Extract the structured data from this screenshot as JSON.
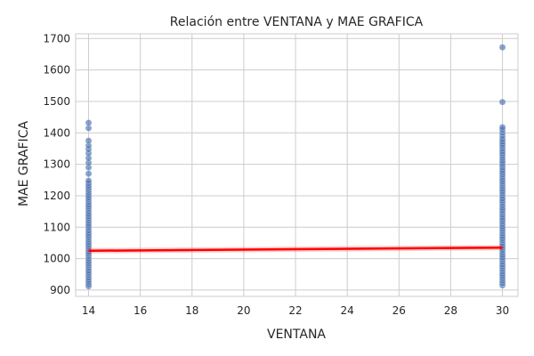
{
  "chart_data": {
    "type": "scatter",
    "title": "Relación entre VENTANA y MAE GRAFICA",
    "xlabel": "VENTANA",
    "ylabel": "MAE GRAFICA",
    "xlim": [
      13.5,
      30.6
    ],
    "ylim": [
      880,
      1715
    ],
    "xticks": [
      14,
      16,
      18,
      20,
      22,
      24,
      26,
      28,
      30
    ],
    "yticks": [
      900,
      1000,
      1100,
      1200,
      1300,
      1400,
      1500,
      1600,
      1700
    ],
    "grid": true,
    "colors": {
      "points": "#4c72b0",
      "regression": "#ff0000",
      "grid": "#cccccc",
      "axes": "#cccccc"
    },
    "series": [
      {
        "x": 14,
        "y": [
          912,
          918,
          925,
          932,
          940,
          948,
          955,
          962,
          970,
          978,
          985,
          992,
          1000,
          1008,
          1015,
          1022,
          1030,
          1038,
          1045,
          1052,
          1060,
          1068,
          1075,
          1082,
          1090,
          1098,
          1105,
          1112,
          1120,
          1128,
          1135,
          1142,
          1150,
          1158,
          1165,
          1172,
          1180,
          1188,
          1195,
          1202,
          1210,
          1218,
          1225,
          1232,
          1240,
          1248,
          1270,
          1290,
          1305,
          1320,
          1335,
          1348,
          1360,
          1375,
          1415,
          1432
        ]
      },
      {
        "x": 30,
        "y": [
          915,
          922,
          930,
          938,
          945,
          952,
          960,
          968,
          975,
          982,
          990,
          998,
          1005,
          1012,
          1020,
          1028,
          1035,
          1042,
          1050,
          1058,
          1065,
          1072,
          1080,
          1088,
          1095,
          1102,
          1110,
          1118,
          1125,
          1132,
          1140,
          1148,
          1155,
          1162,
          1170,
          1178,
          1185,
          1192,
          1200,
          1208,
          1215,
          1222,
          1230,
          1238,
          1245,
          1252,
          1260,
          1268,
          1275,
          1282,
          1290,
          1298,
          1305,
          1312,
          1320,
          1328,
          1335,
          1342,
          1350,
          1358,
          1365,
          1372,
          1380,
          1390,
          1400,
          1410,
          1418,
          1498,
          1672
        ]
      }
    ],
    "regression": {
      "x": [
        14,
        30
      ],
      "y": [
        1025,
        1035
      ]
    }
  }
}
